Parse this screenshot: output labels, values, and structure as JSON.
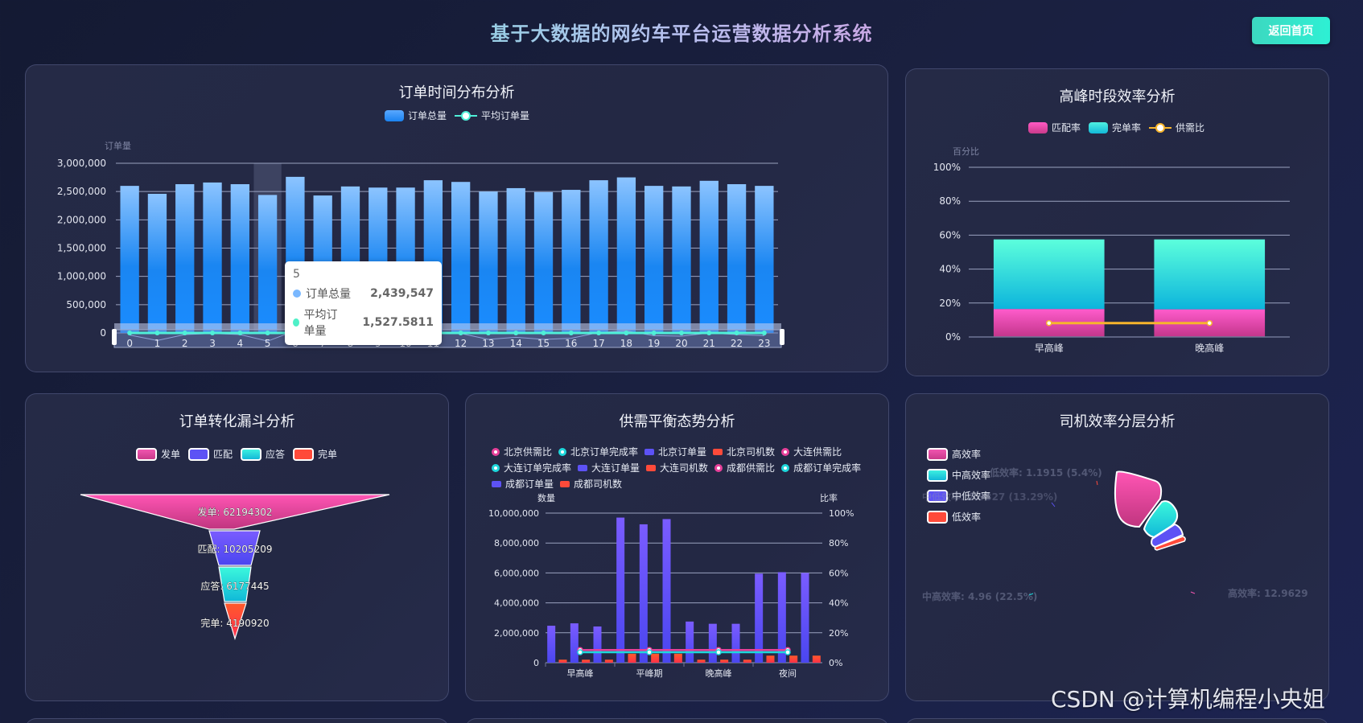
{
  "header": {
    "title": "基于大数据的网约车平台运营数据分析系统",
    "home_button": "返回首页"
  },
  "colors": {
    "title_gradient": [
      "#46f0c6",
      "#f068c6"
    ],
    "button_bg": "#2ef0d4",
    "order_bar_top": "#8cc4ff",
    "order_bar_bottom": "#1a82f0",
    "avg_line": "#4ff0d8",
    "pink": "#f055b0",
    "cyan": "#1ed8dc",
    "purple": "#5d52f5",
    "red": "#ff4a3a",
    "yellow": "#f7b52c"
  },
  "order_time": {
    "title": "订单时间分布分析",
    "legend": [
      "订单总量",
      "平均订单量"
    ],
    "y_axis_name": "订单量",
    "y_ticks": [
      "3,000,000",
      "2,500,000",
      "2,000,000",
      "1,500,000",
      "1,000,000",
      "500,000",
      "0"
    ],
    "tooltip": {
      "header": "5",
      "rows": [
        {
          "label": "订单总量",
          "value": "2,439,547"
        },
        {
          "label": "平均订单量",
          "value": "1,527.5811"
        }
      ]
    }
  },
  "peak": {
    "title": "高峰时段效率分析",
    "legend": [
      "匹配率",
      "完单率",
      "供需比"
    ],
    "y_axis_name": "百分比",
    "y_ticks": [
      "100%",
      "80%",
      "60%",
      "40%",
      "20%",
      "0%"
    ]
  },
  "funnel": {
    "title": "订单转化漏斗分析",
    "legend": [
      "发单",
      "匹配",
      "应答",
      "完单"
    ],
    "labels": [
      "发单: 62194302",
      "匹配: 10205209",
      "应答: 6177445",
      "完单: 4190920"
    ]
  },
  "supply": {
    "title": "供需平衡态势分析",
    "legend": [
      {
        "label": "北京供需比",
        "type": "dot",
        "color": "#e8409a"
      },
      {
        "label": "北京订单完成率",
        "type": "dot",
        "color": "#1ed8dc"
      },
      {
        "label": "北京订单量",
        "type": "bar",
        "color": "#5d52f5"
      },
      {
        "label": "北京司机数",
        "type": "bar",
        "color": "#ff4a3a"
      },
      {
        "label": "大连供需比",
        "type": "dot",
        "color": "#e8409a"
      },
      {
        "label": "大连订单完成率",
        "type": "dot",
        "color": "#1ed8dc"
      },
      {
        "label": "大连订单量",
        "type": "bar",
        "color": "#5d52f5"
      },
      {
        "label": "大连司机数",
        "type": "bar",
        "color": "#ff4a3a"
      },
      {
        "label": "成都供需比",
        "type": "dot",
        "color": "#e8409a"
      },
      {
        "label": "成都订单完成率",
        "type": "dot",
        "color": "#1ed8dc"
      },
      {
        "label": "成都订单量",
        "type": "bar",
        "color": "#5d52f5"
      },
      {
        "label": "成都司机数",
        "type": "bar",
        "color": "#ff4a3a"
      }
    ],
    "y_left_name": "数量",
    "y_right_name": "比率",
    "y_left_ticks": [
      "10,000,000",
      "8,000,000",
      "6,000,000",
      "4,000,000",
      "2,000,000",
      "0"
    ],
    "y_right_ticks": [
      "100%",
      "80%",
      "60%",
      "40%",
      "20%",
      "0%"
    ]
  },
  "driver": {
    "title": "司机效率分层分析",
    "legend": [
      "高效率",
      "中高效率",
      "中低效率",
      "低效率"
    ],
    "labels": {
      "low": "低效率: 1.1915 (5.4%)",
      "mid_low": "中低效率: 2.9327 (13.29%)",
      "mid_high": "中高效率: 4.96 (22.5%)",
      "high": "高效率: 12.9629 (58.8%)"
    }
  },
  "watermark": "CSDN @计算机编程小央姐",
  "chart_data": [
    {
      "type": "bar",
      "title": "订单时间分布分析",
      "xlabel": "",
      "ylabel": "订单量",
      "ylim": [
        0,
        3000000
      ],
      "categories": [
        "0",
        "1",
        "2",
        "3",
        "4",
        "5",
        "6",
        "7",
        "8",
        "9",
        "10",
        "11",
        "12",
        "13",
        "14",
        "15",
        "16",
        "17",
        "18",
        "19",
        "20",
        "21",
        "22",
        "23"
      ],
      "series": [
        {
          "name": "订单总量",
          "type": "bar",
          "values": [
            2600000,
            2460000,
            2630000,
            2660000,
            2630000,
            2439547,
            2760000,
            2430000,
            2590000,
            2570000,
            2570000,
            2700000,
            2670000,
            2500000,
            2560000,
            2490000,
            2530000,
            2700000,
            2750000,
            2600000,
            2590000,
            2690000,
            2630000,
            2600000
          ]
        },
        {
          "name": "平均订单量",
          "type": "line",
          "values": [
            1640,
            1540,
            1650,
            1670,
            1650,
            1527.5811,
            1720,
            1520,
            1620,
            1610,
            1610,
            1690,
            1670,
            1560,
            1600,
            1560,
            1580,
            1690,
            1720,
            1630,
            1620,
            1680,
            1650,
            1630
          ]
        }
      ],
      "grid": true,
      "legend_position": "top",
      "data_zoom": {
        "start": 0,
        "end": 23
      }
    },
    {
      "type": "bar",
      "title": "高峰时段效率分析",
      "ylabel": "百分比",
      "ylim": [
        0,
        100
      ],
      "stacked": true,
      "categories": [
        "早高峰",
        "晚高峰"
      ],
      "series": [
        {
          "name": "匹配率",
          "type": "bar",
          "values": [
            16.5,
            16.3
          ]
        },
        {
          "name": "完单率",
          "type": "bar",
          "values": [
            41.0,
            41.2
          ]
        },
        {
          "name": "供需比",
          "type": "line",
          "values": [
            8.2,
            8.2
          ]
        }
      ],
      "grid": true,
      "legend_position": "top"
    },
    {
      "type": "funnel",
      "title": "订单转化漏斗分析",
      "categories": [
        "发单",
        "匹配",
        "应答",
        "完单"
      ],
      "values": [
        62194302,
        10205209,
        6177445,
        4190920
      ],
      "legend_position": "top"
    },
    {
      "type": "bar",
      "title": "供需平衡态势分析",
      "categories": [
        "早高峰",
        "平峰期",
        "晚高峰",
        "夜间"
      ],
      "ylabel": "数量",
      "ylabel_right": "比率",
      "ylim": [
        0,
        10000000
      ],
      "ylim_right": [
        0,
        100
      ],
      "series": [
        {
          "name": "北京订单量",
          "type": "bar",
          "values": [
            2470000,
            9700000,
            2750000,
            5950000
          ]
        },
        {
          "name": "北京司机数",
          "type": "bar",
          "values": [
            200000,
            600000,
            200000,
            470000
          ]
        },
        {
          "name": "大连订单量",
          "type": "bar",
          "values": [
            2630000,
            9250000,
            2600000,
            6050000
          ]
        },
        {
          "name": "大连司机数",
          "type": "bar",
          "values": [
            200000,
            600000,
            200000,
            470000
          ]
        },
        {
          "name": "成都订单量",
          "type": "bar",
          "values": [
            2420000,
            9600000,
            2600000,
            6000000
          ]
        },
        {
          "name": "成都司机数",
          "type": "bar",
          "values": [
            200000,
            600000,
            200000,
            470000
          ]
        },
        {
          "name": "北京供需比",
          "type": "line",
          "axis": "right",
          "values": [
            8.5,
            8.5,
            8.5,
            8.5
          ]
        },
        {
          "name": "北京订单完成率",
          "type": "line",
          "axis": "right",
          "values": [
            7,
            7,
            7,
            7
          ]
        },
        {
          "name": "大连供需比",
          "type": "line",
          "axis": "right",
          "values": [
            8.5,
            8.5,
            8.5,
            8.5
          ]
        },
        {
          "name": "大连订单完成率",
          "type": "line",
          "axis": "right",
          "values": [
            7,
            7,
            7,
            7
          ]
        },
        {
          "name": "成都供需比",
          "type": "line",
          "axis": "right",
          "values": [
            8.5,
            8.5,
            8.5,
            8.5
          ]
        },
        {
          "name": "成都订单完成率",
          "type": "line",
          "axis": "right",
          "values": [
            7,
            7,
            7,
            7
          ]
        }
      ],
      "grid": true,
      "legend_position": "top"
    },
    {
      "type": "pie",
      "title": "司机效率分层分析",
      "rose": true,
      "categories": [
        "高效率",
        "中高效率",
        "中低效率",
        "低效率"
      ],
      "values": [
        12.9629,
        4.96,
        2.9327,
        1.1915
      ],
      "percentages": [
        58.8,
        22.5,
        13.29,
        5.4
      ],
      "legend_position": "left"
    }
  ]
}
